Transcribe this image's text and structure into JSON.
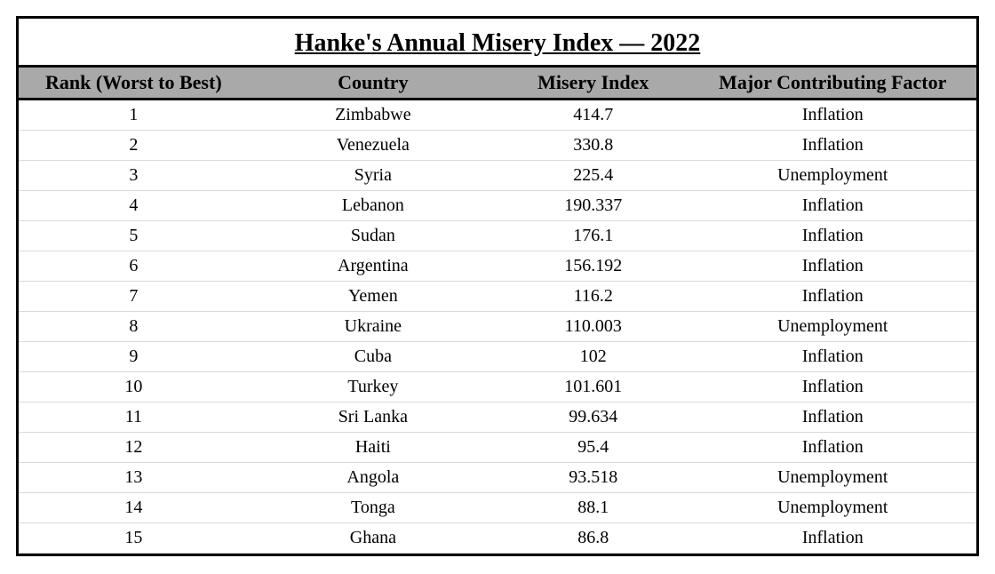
{
  "title": "Hanke's Annual Misery Index — 2022",
  "table": {
    "type": "table",
    "header_bg": "#a9a9a9",
    "border_color": "#000000",
    "row_divider_color": "#d9d9d9",
    "title_fontsize": 28,
    "header_fontsize": 22,
    "cell_fontsize": 20,
    "columns": [
      {
        "key": "rank",
        "label": "Rank (Worst to Best)",
        "width_pct": 24,
        "align": "center"
      },
      {
        "key": "country",
        "label": "Country",
        "width_pct": 26,
        "align": "center"
      },
      {
        "key": "index",
        "label": "Misery Index",
        "width_pct": 20,
        "align": "center"
      },
      {
        "key": "factor",
        "label": "Major Contributing Factor",
        "width_pct": 30,
        "align": "center"
      }
    ],
    "rows": [
      {
        "rank": "1",
        "country": "Zimbabwe",
        "index": "414.7",
        "factor": "Inflation"
      },
      {
        "rank": "2",
        "country": "Venezuela",
        "index": "330.8",
        "factor": "Inflation"
      },
      {
        "rank": "3",
        "country": "Syria",
        "index": "225.4",
        "factor": "Unemployment"
      },
      {
        "rank": "4",
        "country": "Lebanon",
        "index": "190.337",
        "factor": "Inflation"
      },
      {
        "rank": "5",
        "country": "Sudan",
        "index": "176.1",
        "factor": "Inflation"
      },
      {
        "rank": "6",
        "country": "Argentina",
        "index": "156.192",
        "factor": "Inflation"
      },
      {
        "rank": "7",
        "country": "Yemen",
        "index": "116.2",
        "factor": "Inflation"
      },
      {
        "rank": "8",
        "country": "Ukraine",
        "index": "110.003",
        "factor": "Unemployment"
      },
      {
        "rank": "9",
        "country": "Cuba",
        "index": "102",
        "factor": "Inflation"
      },
      {
        "rank": "10",
        "country": "Turkey",
        "index": "101.601",
        "factor": "Inflation"
      },
      {
        "rank": "11",
        "country": "Sri Lanka",
        "index": "99.634",
        "factor": "Inflation"
      },
      {
        "rank": "12",
        "country": "Haiti",
        "index": "95.4",
        "factor": "Inflation"
      },
      {
        "rank": "13",
        "country": "Angola",
        "index": "93.518",
        "factor": "Unemployment"
      },
      {
        "rank": "14",
        "country": "Tonga",
        "index": "88.1",
        "factor": "Unemployment"
      },
      {
        "rank": "15",
        "country": "Ghana",
        "index": "86.8",
        "factor": "Inflation"
      }
    ]
  }
}
